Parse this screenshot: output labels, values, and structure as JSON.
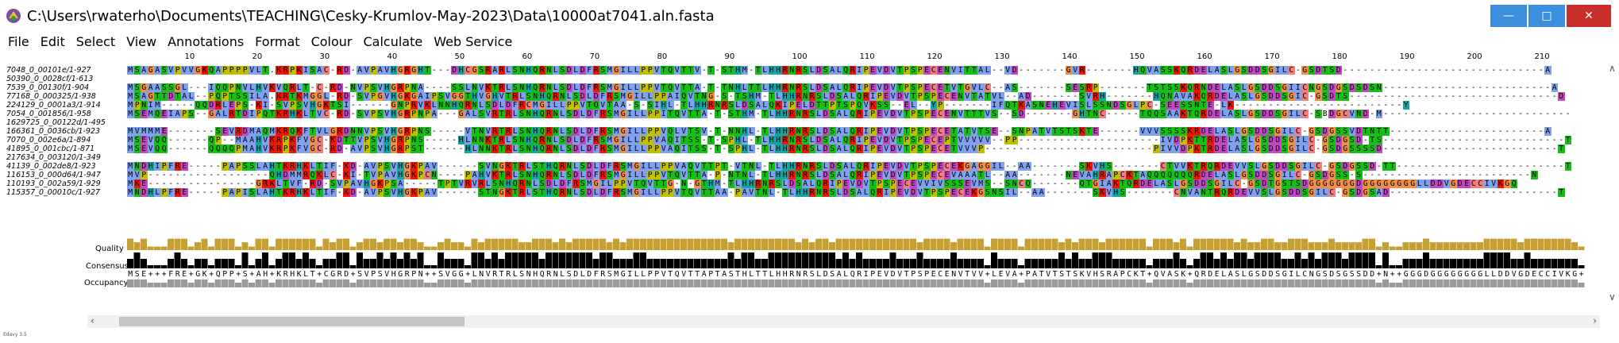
{
  "window": {
    "title": "C:\\Users\\rwaterho\\Documents\\TEACHING\\Cesky-Krumlov-May-2023\\Data\\10000at7041.aln.fasta",
    "min_symbol": "—",
    "max_symbol": "□",
    "close_symbol": "✕"
  },
  "menu": [
    "File",
    "Edit",
    "Select",
    "View",
    "Annotations",
    "Format",
    "Colour",
    "Calculate",
    "Web Service"
  ],
  "ruler": [
    "10",
    "20",
    "30",
    "40",
    "50",
    "60",
    "70",
    "80",
    "90",
    "100",
    "110",
    "120",
    "130",
    "140",
    "150",
    "160",
    "170",
    "180",
    "190",
    "200",
    "210"
  ],
  "sequences": [
    {
      "name": "7048_0_00101e/1-927",
      "seq": "MSAGASVPVVGKQAPPPPVLT.KRPKISAC-RD-AVPAVHGRGHT---DHCGSRARLSNHQRNLSDLDFRSMGILLPPVTQVTTV-T-STHM-TLHHRNRSLDSALQRIPEVDVTPSPECENVITTAL--VD-------GVR-------HQVASSKQRDELASLGSDDSGILC-GSDTSD------------------------------A"
    },
    {
      "name": "50390_0_0028cf/1-613",
      "seq": ""
    },
    {
      "name": "7539_0_00130f/1-904",
      "seq": "MSGAASSGL---IQQPNVLHVKVQRLT-C-RD-NVPSVHGRPNA----SSLNVKTRLSNHQRNLSDLDFRSMGILLPPVTQVTTA-T-TNHLTTLHHRNRSLDSALQRIPEVDVTPSPECETVTGVLC--AS-------SESRP-------TSTSSKQRNDELASLGSDDSGIICNGSDGSDSDSN-------------------------A"
    },
    {
      "name": "77168_0_000325/1-938",
      "seq": "MSAGTTDTAL--PQPTSSILA.KRTKMGGL-RD-SVPGVHGKGAIPSVGGTHVGHVTRLSNHQRNLSDLDFRSMGILLPPAIQVTNG-S-TSHM-TLHHRNRSLDSALQRIPEVDVTPSPECENVTATVL--AD-------SVRH-------HQNAVAKQRDELASLGSDDSGIC-GSDTS-------------------------------D"
    },
    {
      "name": "224129_0_0001a3/1-914",
      "seq": "MPNIM-----QQDRLEPS-KI-SVPSVHGKTSI------GNPRVKLNNHQRNLSDLDFRCMGILLPPVTQVTAA-S-SIHL-TLHHRNRSLDSALQKIPELDTTPTSPQVKSS--EL--YP-------IFQTKASNEHEVISLSSNDSGLPC-SEESSNTE-LK-------------------------Y"
    },
    {
      "name": "7054_0_001856/1-958",
      "seq": "MSEMQEIAPS--GALRTDIPQTKRHKLTVC-RD-SVPSVHGRPNPA---GALSVRTRLSNHQRNLSDLDFRSMGILLPPITQVTTA-T-STHM-TLHHRNRSLDSALQRIPEVDVTPSPECENVTTTVS--SD-------GHTNC-----TQQSAAKTQRDELASLGSDDSGILC-SBDGCVND-M----------------------------"
    },
    {
      "name": "1629725_0_00122d/1-495",
      "seq": ""
    },
    {
      "name": "166361_0_0036cb/1-923",
      "seq": "MVMMME-------SEVRDMAQMKRQKFTVLGRDNNVPSVHGRPNS-----VTNVRTRLSNHQRNLSDLDFRSMGILLPPVQLVTSV-T-NNHL-TLHHRNRSLDSALQRIPEVDVTPSPECETATVTSE--SNPATVTSTSKTE------VVVSSSSKRDELASLGSDDSGILC-GSDGSSVDTNTT-----------------------A"
    },
    {
      "name": "7070_0_002e6a/1-894",
      "seq": "MSEVQQ------QP--MAAHVKRPKFVGC-KDTTVPSVHGRPNS-----HLNNKTRLSNHQRNLSDLDFRSMGILLPPVAQITSS-T-SPHL-TLHHRNRSLDSALQRIPEVDVTPSPECEPTVVVVV--PP---------------------IVDPKTTRDELASLGSDDSGILC-GSDGSD-TS---------------------------T"
    },
    {
      "name": "41895_0_001cbc/1-871",
      "seq": "MSEVQQ------QQQQPMAHVKRPKFVGC-RD-AVPSVHGRPST------HLNNKTRLSNHQRNLSDLDFRSMGILLPPVAQITSS-T-SPHL-TLHHRNRSLDSALQRIPEVDVTPSPECETVVVP-------------------------PIVVDPKTRDELASLGSDDSGILC-GSDGSSSSD--------------------------T"
    },
    {
      "name": "217634_0_003120/1-349",
      "seq": ""
    },
    {
      "name": "41139_0_002de8/1-923",
      "seq": "MNDHIPFRE-----PAPSSLAHTKRHKLTIF-KD-AVPSVHGKPAV------SVNGKTRLSTHQRNLSDLDFRSMGILLPPVAQVTTPT-VTNL-TLHHRNRSLDSALQRIPEVDVTPSPECEKGAGGIL--AA-------SKVHS-------CTVVKTRQRDEVVSLGSDDSGILC-GSDGSSD-TT-------------------------T"
    },
    {
      "name": "116153_0_000d64/1-947",
      "seq": "MVP------------------QHDMMRQKLC-KI-TVPAVHGKPCN----PAHVKTRLSNHQRNLSDLDFRSMGILLPPVTQVTTA-P-NTNL-TLHHRNRSLDSALQRIPEVDVTPSPECEVAAATL--AA-------NEVAHRAPCKTAQQQQQQQRDELASLGSDDSGILC-GSDGSS-S-------------------------N"
    },
    {
      "name": "110193_0_002a59/1-929",
      "seq": "MKE----------------GRKLTVF-RD-SVPAVHGKPSA-----TPTVRVRLSNHQRNLSDLDFRSMGILPPVTQVTTG-N-GTHM-TLHHRNRSLDSALQRIPEVDVTPSPECEVVIVSSSEVMS--SNCQ-------QTGIAKTQRDELASLGSDDSGILC-GSDTGSTSDGGGGGGGDGGGGGGGGLLDDVGDECCIVKGQ"
    },
    {
      "name": "115357_0_00010c/1-927",
      "seq": "MNDHLPFRE-----PAPISLAHTKRHKLTIF-KD-AVPSVHGKPAV------STNGKTRLSTHQRNLSDLDFRSMGILLPPVTQVTTAA-PAVTNL-TLHHRNRSLDSALQRIPEVDVTPSPECEKGSNSIL--AA-------SKVHS-------CNVANTRQRDEVVSLGSDDSGILC-GSDGSAD-------------------------T"
    }
  ],
  "annotations": {
    "quality_label": "Quality",
    "consensus_label": "Consensus",
    "occupancy_label": "Occupancy",
    "consensus_seq": "MSE+++FRE+GK+QPP+S+AH+KRHKLT+CGRD+SVPSVHGRPN++SVGG+LNVRTRLSNHQRNLSDLDFRSMGILLPPVTQVTTAPTASTHLTTLHHRNRSLDSALQRIPEVDVTPSPECENVTVV+LEVA+PATVTSTSKVHSRAPCKT+QVASK+QRDELASLGSDDSGILCNGSDSGSSDD+N++GGGDGGGGGGGGLLDDVGDECCIVKG+"
  },
  "status_text": "Edavy 3.5",
  "colors": {
    "hydrophobic": "#80a0f0",
    "positive": "#f01505",
    "negative": "#c048c0",
    "polar": "#15c015",
    "cys": "#f08080",
    "gly": "#f09048",
    "pro": "#c0c000",
    "aromatic": "#15a4a4",
    "quality": "#c8a032",
    "consensus": "#000000",
    "occupancy": "#9a9a9a",
    "close": "#c9302c",
    "titlebar_btn": "#3c8fdc"
  }
}
